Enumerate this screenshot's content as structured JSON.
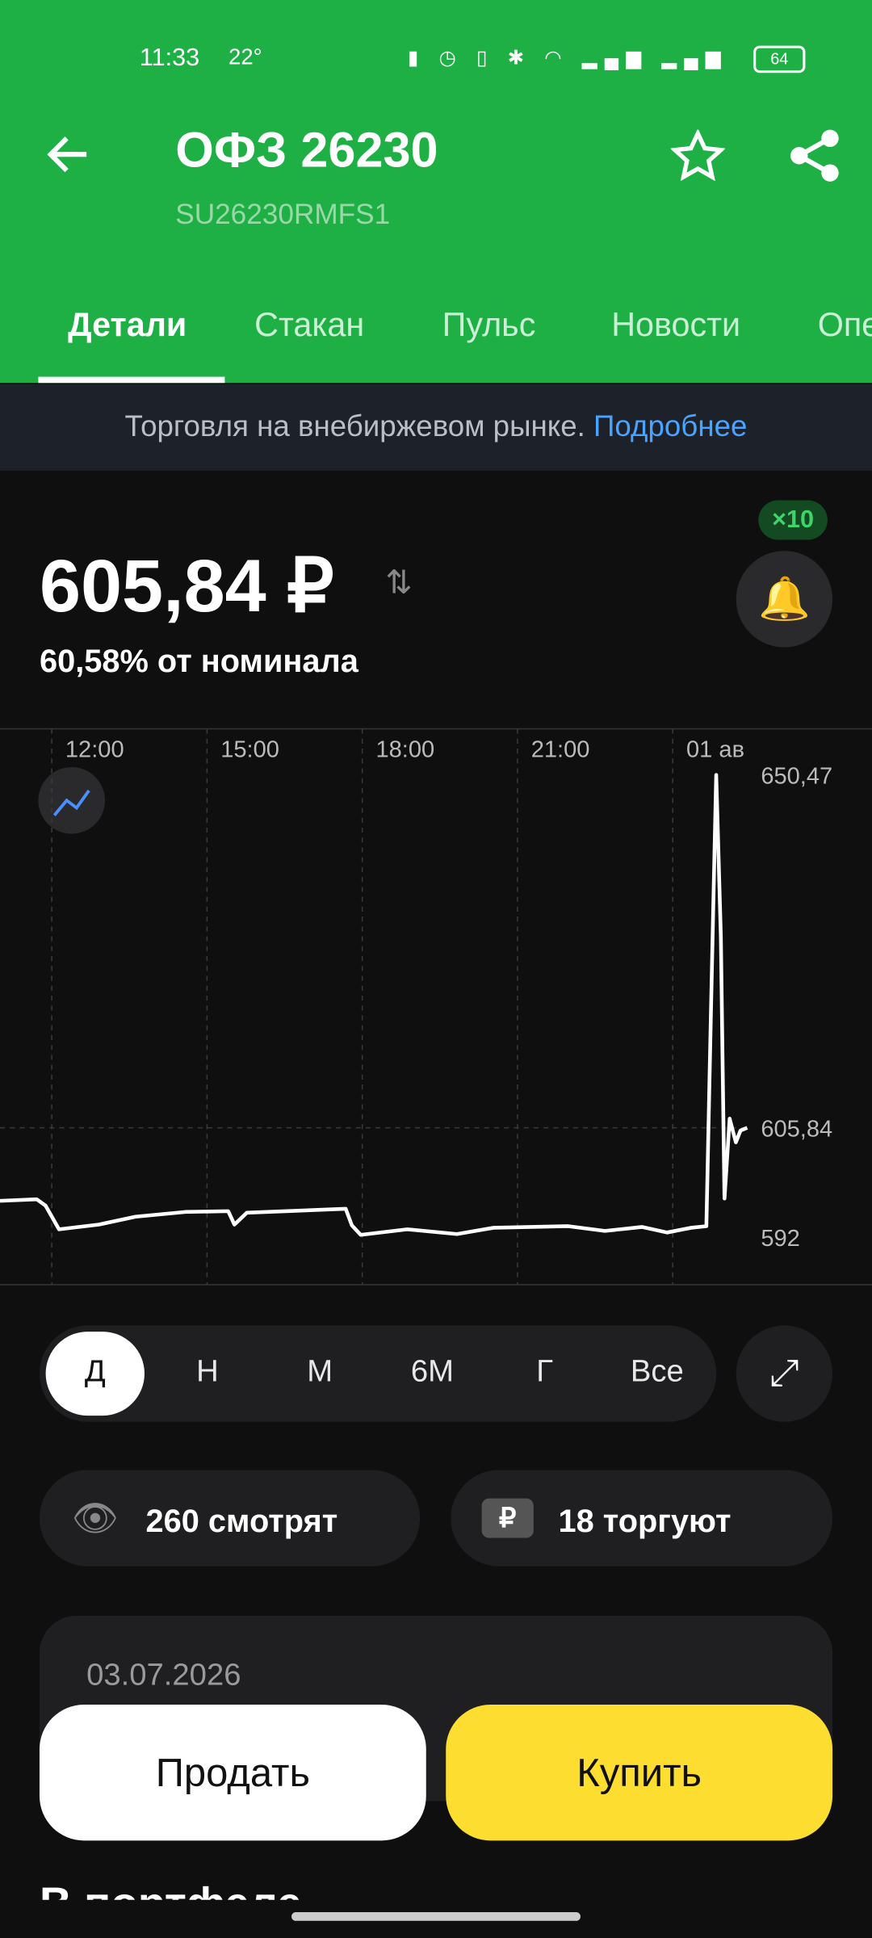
{
  "status_bar": {
    "time": "11:33",
    "temperature": "22°",
    "battery": "64"
  },
  "header": {
    "title": "ОФЗ 26230",
    "subtitle": "SU26230RMFS1"
  },
  "tabs": [
    "Детали",
    "Стакан",
    "Пульс",
    "Новости",
    "Опе"
  ],
  "banner": {
    "text": "Торговля на внебиржевом рынке.",
    "link": "Подробнее"
  },
  "price": {
    "value": "605,84 ₽",
    "nominal": "60,58% от номинала",
    "badge": "×10"
  },
  "chart_data": {
    "type": "line",
    "x": [
      11.0,
      11.71,
      11.88,
      12.14,
      12.91,
      13.62,
      14.58,
      15.41,
      15.53,
      15.77,
      17.68,
      17.8,
      17.97,
      18.87,
      19.83,
      20.54,
      21.98,
      22.69,
      23.41,
      23.89,
      24.36,
      24.65,
      24.74,
      24.84,
      24.93,
      25.0,
      25.1,
      25.22,
      25.31,
      25.44
    ],
    "series": [
      {
        "name": "Цена",
        "color": "#ffffff",
        "values": [
          596.6,
          596.8,
          596.0,
          593.0,
          593.6,
          594.6,
          595.2,
          595.3,
          593.6,
          595.1,
          595.6,
          593.5,
          592.3,
          593.0,
          592.4,
          593.2,
          593.4,
          592.8,
          593.3,
          592.6,
          593.2,
          593.4,
          621,
          650.47,
          630,
          596.9,
          607.0,
          604.0,
          605.5,
          605.84
        ]
      }
    ],
    "xlim": [
      11,
      25.44
    ],
    "xticks": [
      {
        "value": 12,
        "label": "12:00"
      },
      {
        "value": 15,
        "label": "15:00"
      },
      {
        "value": 18,
        "label": "18:00"
      },
      {
        "value": 21,
        "label": "21:00"
      },
      {
        "value": 24,
        "label": "01 ав"
      }
    ],
    "ylim": [
      586,
      656.3
    ],
    "yticks": [
      {
        "value": 650.47,
        "label": "650,47"
      },
      {
        "value": 605.84,
        "label": "605,84"
      },
      592
    ]
  },
  "periods": [
    "Д",
    "Н",
    "М",
    "6М",
    "Г",
    "Все"
  ],
  "stats": [
    "260 смотрят",
    "18 торгуют"
  ],
  "card": {
    "date": "03.07.2026"
  },
  "actions": {
    "sell": "Продать",
    "buy": "Купить"
  },
  "section_title": "В портфеле"
}
